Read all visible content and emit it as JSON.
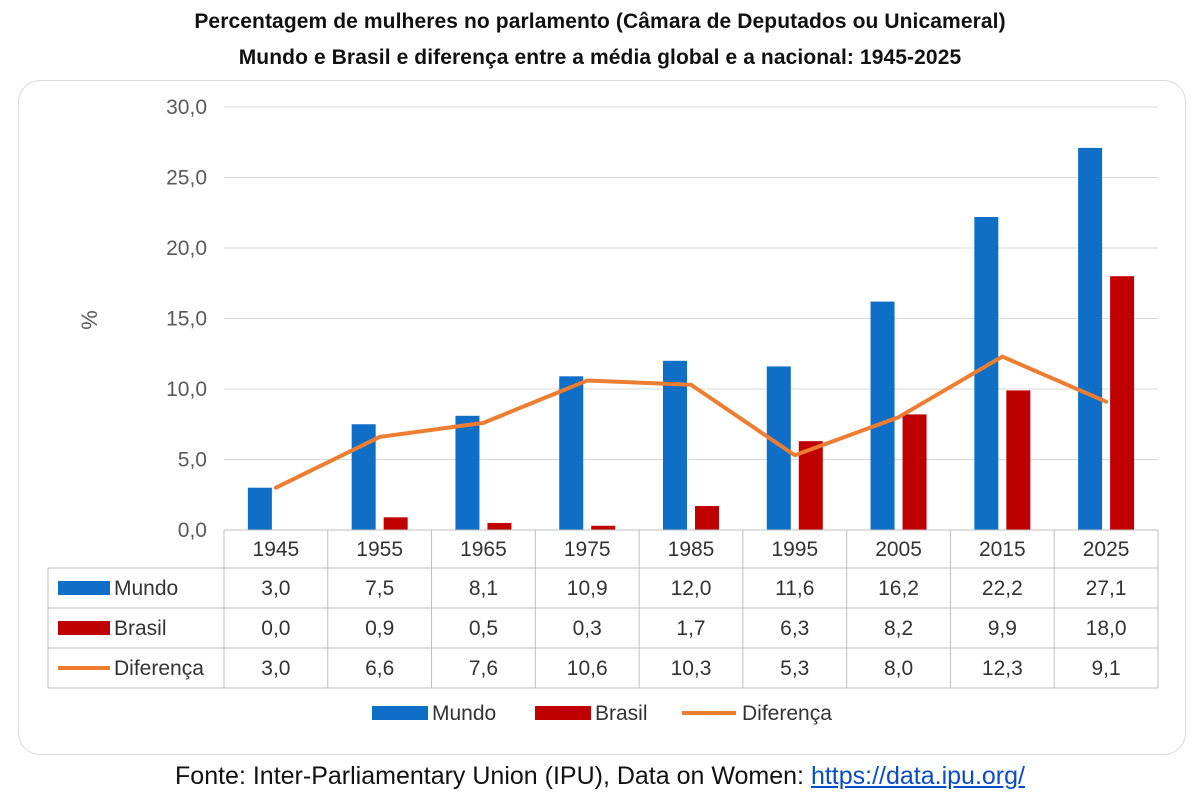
{
  "title_line1": "Percentagem de mulheres no parlamento (Câmara de Deputados ou Unicameral)",
  "title_line2": "Mundo e Brasil e diferença entre a média global e a nacional: 1945-2025",
  "source_prefix": "Fonte: Inter-Parliamentary Union (IPU), Data on Women: ",
  "source_link": "https://data.ipu.org/",
  "colors": {
    "mundo": "#0f6fc6",
    "brasil": "#c00000",
    "diferenca": "#ed7d31",
    "grid": "#d9d9d9",
    "axis_text": "#595959"
  },
  "chart_data": {
    "type": "bar",
    "ylabel": "%",
    "ylim": [
      0,
      30
    ],
    "yticks": [
      "0,0",
      "5,0",
      "10,0",
      "15,0",
      "20,0",
      "25,0",
      "30,0"
    ],
    "grid": true,
    "legend": "bottom",
    "categories": [
      "1945",
      "1955",
      "1965",
      "1975",
      "1985",
      "1995",
      "2005",
      "2015",
      "2025"
    ],
    "series": [
      {
        "name": "Mundo",
        "kind": "bar",
        "values": [
          3.0,
          7.5,
          8.1,
          10.9,
          12.0,
          11.6,
          16.2,
          22.2,
          27.1
        ],
        "labels": [
          "3,0",
          "7,5",
          "8,1",
          "10,9",
          "12,0",
          "11,6",
          "16,2",
          "22,2",
          "27,1"
        ]
      },
      {
        "name": "Brasil",
        "kind": "bar",
        "values": [
          0.0,
          0.9,
          0.5,
          0.3,
          1.7,
          6.3,
          8.2,
          9.9,
          18.0
        ],
        "labels": [
          "0,0",
          "0,9",
          "0,5",
          "0,3",
          "1,7",
          "6,3",
          "8,2",
          "9,9",
          "18,0"
        ]
      },
      {
        "name": "Diferença",
        "kind": "line",
        "values": [
          3.0,
          6.6,
          7.6,
          10.6,
          10.3,
          5.3,
          8.0,
          12.3,
          9.1
        ],
        "labels": [
          "3,0",
          "6,6",
          "7,6",
          "10,6",
          "10,3",
          "5,3",
          "8,0",
          "12,3",
          "9,1"
        ]
      }
    ]
  }
}
